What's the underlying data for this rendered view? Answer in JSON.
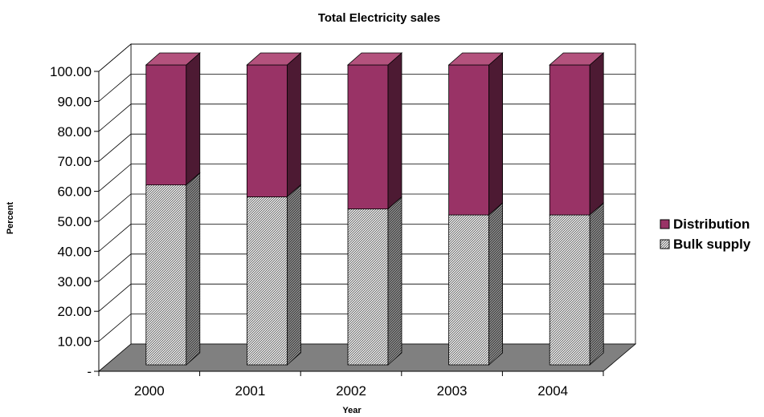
{
  "chart_data": {
    "type": "bar",
    "stacked": true,
    "percent_stacked": true,
    "style_3d": true,
    "title": "Total Electricity sales",
    "xlabel": "Year",
    "ylabel": "Percent",
    "categories": [
      "2000",
      "2001",
      "2002",
      "2003",
      "2004"
    ],
    "ylim": [
      0,
      100
    ],
    "y_ticks": [
      "-",
      "10.00",
      "20.00",
      "30.00",
      "40.00",
      "50.00",
      "60.00",
      "70.00",
      "80.00",
      "90.00",
      "100.00"
    ],
    "grid": true,
    "legend_position": "right",
    "series": [
      {
        "name": "Bulk supply",
        "values": [
          60,
          56,
          52,
          50,
          50
        ],
        "color": "#ffffff",
        "pattern": "diagonal-hatch"
      },
      {
        "name": "Distribution",
        "values": [
          40,
          44,
          48,
          50,
          50
        ],
        "color": "#993366"
      }
    ],
    "floor_color": "#808080"
  }
}
